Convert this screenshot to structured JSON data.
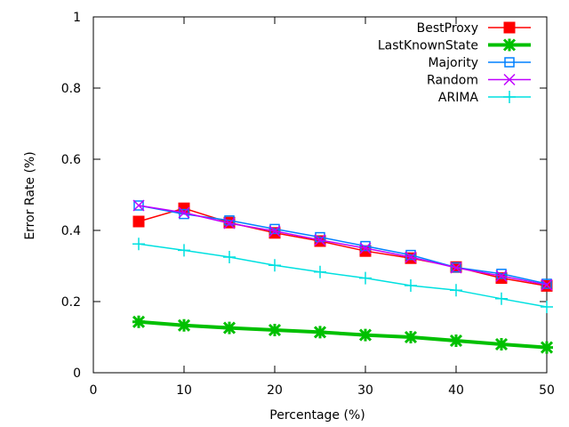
{
  "chart_data": {
    "type": "line",
    "title": "",
    "xlabel": "Percentage (%)",
    "ylabel": "Error Rate (%)",
    "xlim": [
      0,
      50
    ],
    "ylim": [
      0,
      1
    ],
    "xticks": [
      0,
      10,
      20,
      30,
      40,
      50
    ],
    "xtick_labels": [
      "0",
      "10",
      "20",
      "30",
      "40",
      "50"
    ],
    "yticks": [
      0,
      0.2,
      0.4,
      0.6,
      0.8,
      1
    ],
    "ytick_labels": [
      "0",
      "0.2",
      "0.4",
      "0.6",
      "0.8",
      "1"
    ],
    "grid": false,
    "legend_position": "top-right",
    "x": [
      5,
      10,
      15,
      20,
      25,
      30,
      35,
      40,
      45,
      50
    ],
    "series": [
      {
        "name": "BestProxy",
        "color": "#ff0000",
        "marker": "filled-square",
        "values": [
          0.425,
          0.462,
          0.422,
          0.393,
          0.37,
          0.342,
          0.322,
          0.297,
          0.266,
          0.244
        ]
      },
      {
        "name": "LastKnownState",
        "color": "#00c000",
        "marker": "star",
        "values": [
          0.143,
          0.133,
          0.126,
          0.12,
          0.114,
          0.106,
          0.1,
          0.09,
          0.08,
          0.071
        ]
      },
      {
        "name": "Majority",
        "color": "#0080ff",
        "marker": "open-square",
        "values": [
          0.47,
          0.446,
          0.428,
          0.404,
          0.381,
          0.356,
          0.331,
          0.296,
          0.278,
          0.25
        ]
      },
      {
        "name": "Random",
        "color": "#c000ff",
        "marker": "x",
        "values": [
          0.47,
          0.45,
          0.42,
          0.398,
          0.373,
          0.35,
          0.325,
          0.295,
          0.272,
          0.247
        ]
      },
      {
        "name": "ARIMA",
        "color": "#00e0e0",
        "marker": "plus",
        "values": [
          0.362,
          0.344,
          0.325,
          0.302,
          0.283,
          0.266,
          0.245,
          0.232,
          0.208,
          0.185
        ]
      }
    ]
  }
}
